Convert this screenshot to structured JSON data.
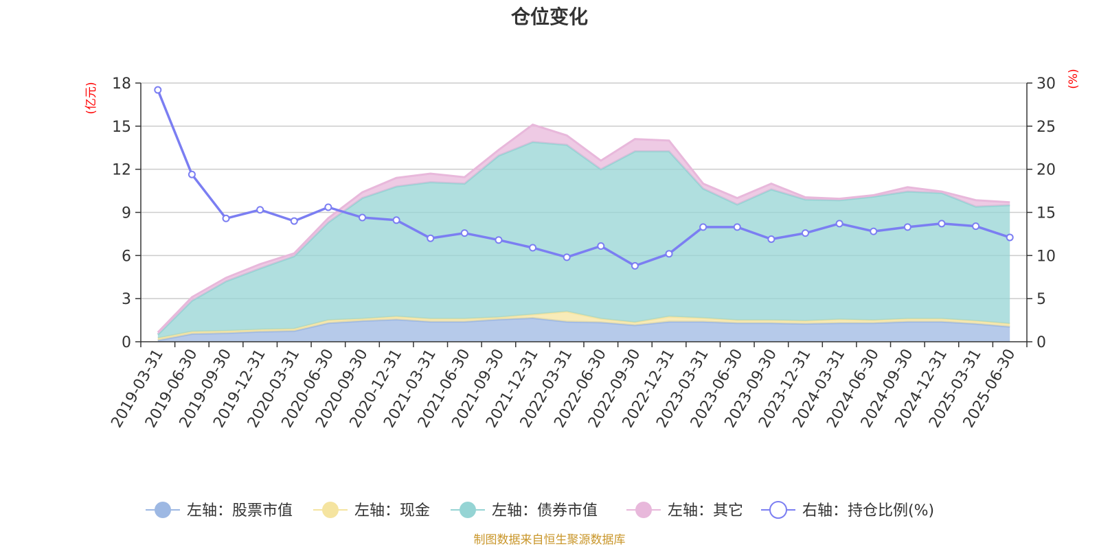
{
  "chart_data": {
    "type": "area",
    "title": "仓位变化",
    "left_unit": "(亿元)",
    "right_unit": "(%)",
    "categories": [
      "2019-03-31",
      "2019-06-30",
      "2019-09-30",
      "2019-12-31",
      "2020-03-31",
      "2020-06-30",
      "2020-09-30",
      "2020-12-31",
      "2021-03-31",
      "2021-06-30",
      "2021-09-30",
      "2021-12-31",
      "2022-03-31",
      "2022-06-30",
      "2022-09-30",
      "2022-12-31",
      "2023-03-31",
      "2023-06-30",
      "2023-09-30",
      "2023-12-31",
      "2024-03-31",
      "2024-06-30",
      "2024-09-30",
      "2024-12-31",
      "2025-03-31",
      "2025-06-30"
    ],
    "left_axis": {
      "ylim": [
        0,
        18
      ],
      "ticks": [
        "0",
        "3",
        "6",
        "9",
        "12",
        "15",
        "18"
      ]
    },
    "right_axis": {
      "ylim": [
        0,
        30
      ],
      "ticks": [
        "0",
        "5",
        "10",
        "15",
        "20",
        "25",
        "30"
      ]
    },
    "series": [
      {
        "name": "左轴：股票市值",
        "axis": "left",
        "stack": true,
        "color": "#9db8e3",
        "values": [
          0.1,
          0.55,
          0.6,
          0.7,
          0.75,
          1.3,
          1.45,
          1.55,
          1.4,
          1.4,
          1.55,
          1.65,
          1.4,
          1.35,
          1.15,
          1.4,
          1.4,
          1.3,
          1.3,
          1.25,
          1.3,
          1.3,
          1.4,
          1.4,
          1.25,
          1.05
        ]
      },
      {
        "name": "左轴：现金",
        "axis": "left",
        "stack": true,
        "color": "#f5e4a0",
        "values": [
          0.15,
          0.15,
          0.15,
          0.15,
          0.15,
          0.2,
          0.15,
          0.2,
          0.2,
          0.2,
          0.15,
          0.25,
          0.7,
          0.25,
          0.2,
          0.35,
          0.25,
          0.2,
          0.2,
          0.2,
          0.25,
          0.2,
          0.2,
          0.2,
          0.2,
          0.2
        ]
      },
      {
        "name": "左轴：债券市值",
        "axis": "left",
        "stack": true,
        "color": "#95d4d4",
        "values": [
          0.25,
          2.15,
          3.45,
          4.25,
          5.05,
          6.8,
          8.4,
          9.05,
          9.5,
          9.4,
          11.25,
          12.0,
          11.6,
          10.4,
          11.9,
          11.5,
          9.0,
          8.05,
          9.1,
          8.45,
          8.3,
          8.6,
          8.85,
          8.75,
          7.95,
          8.25
        ]
      },
      {
        "name": "左轴：其它",
        "axis": "left",
        "stack": true,
        "color": "#e8b8db",
        "values": [
          0.15,
          0.25,
          0.25,
          0.3,
          0.2,
          0.3,
          0.4,
          0.6,
          0.6,
          0.45,
          0.4,
          1.2,
          0.65,
          0.6,
          0.85,
          0.75,
          0.35,
          0.45,
          0.4,
          0.15,
          0.1,
          0.1,
          0.3,
          0.1,
          0.45,
          0.2
        ]
      },
      {
        "name": "右轴：持仓比例(%)",
        "axis": "right",
        "stack": false,
        "color": "#7b7ef2",
        "values": [
          29.2,
          19.4,
          14.3,
          15.3,
          14.0,
          15.6,
          14.4,
          14.1,
          12.0,
          12.6,
          11.8,
          10.9,
          9.8,
          11.1,
          8.8,
          10.2,
          13.3,
          13.3,
          11.9,
          12.6,
          13.7,
          12.8,
          13.3,
          13.7,
          13.4,
          12.1
        ]
      }
    ],
    "grid": true,
    "legend_position": "bottom"
  },
  "source_note": "制图数据来自恒生聚源数据库"
}
